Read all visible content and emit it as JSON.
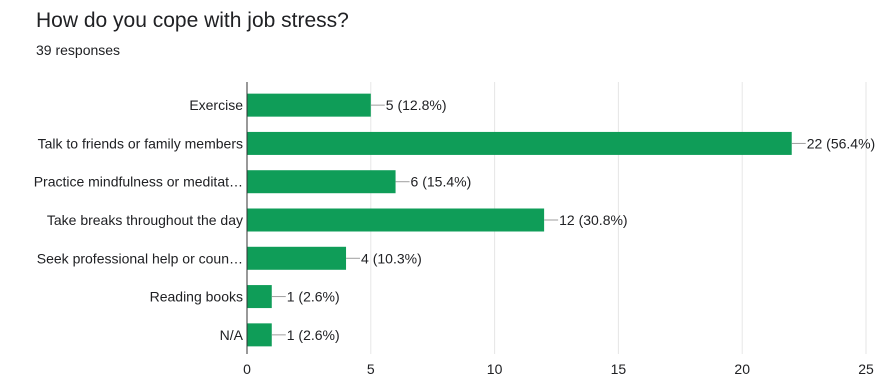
{
  "header": {
    "title": "How do you cope with job stress?",
    "responses": "39 responses"
  },
  "chart_data": {
    "type": "bar",
    "orientation": "horizontal",
    "title": "How do you cope with job stress?",
    "subtitle": "39 responses",
    "categories": [
      "Exercise",
      "Talk to friends or family members",
      "Practice mindfulness or meditat…",
      "Take breaks throughout the day",
      "Seek professional help or coun…",
      "Reading books",
      "N/A"
    ],
    "values": [
      5,
      22,
      6,
      12,
      4,
      1,
      1
    ],
    "data_labels": [
      "5 (12.8%)",
      "22 (56.4%)",
      "6 (15.4%)",
      "12 (30.8%)",
      "4 (10.3%)",
      "1 (2.6%)",
      "1 (2.6%)"
    ],
    "xlim": [
      0,
      25
    ],
    "x_ticks": [
      0,
      5,
      10,
      15,
      20,
      25
    ],
    "grid": true,
    "legend": "none",
    "bar_color": "#0f9d58",
    "text_color": "#202124",
    "grid_color": "#e6e6e6",
    "axis_color": "#333333"
  }
}
